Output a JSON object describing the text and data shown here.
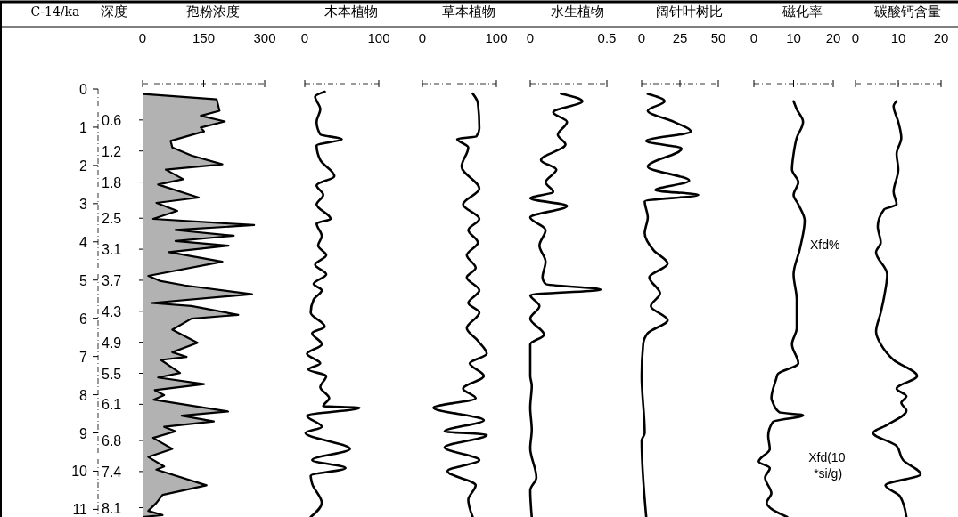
{
  "chart_data": [
    {
      "type": "area",
      "title": "孢粉浓度",
      "ylabel": "C-14/ka",
      "y2label": "深度",
      "xlim": [
        0,
        300
      ],
      "xticks": [
        0,
        150,
        300
      ],
      "ylim": [
        11.2,
        0
      ],
      "yticks": [
        0,
        1,
        2,
        3,
        4,
        5,
        6,
        7,
        8,
        9,
        10,
        11
      ],
      "y2lim": [
        8.28,
        0
      ],
      "y2ticks": [
        0.6,
        1.2,
        1.8,
        2.5,
        3.1,
        3.7,
        4.3,
        4.9,
        5.5,
        6.1,
        6.8,
        7.4,
        8.1
      ],
      "series": [
        {
          "color": "#000000",
          "x": [
            2,
            182,
            189,
            143,
            202,
            143,
            151,
            69,
            73,
            120,
            196,
            57,
            100,
            38,
            138,
            34,
            85,
            26,
            274,
            81,
            224,
            81,
            211,
            65,
            196,
            14,
            42,
            104,
            269,
            22,
            120,
            235,
            120,
            73,
            135,
            73,
            108,
            45,
            92,
            38,
            151,
            30,
            53,
            27,
            210,
            96,
            175,
            53,
            81,
            26,
            73,
            14,
            53,
            34,
            157,
            49,
            34,
            14,
            49,
            0
          ],
          "values": [
            0.13,
            0.27,
            0.57,
            0.7,
            0.85,
            1.01,
            1.11,
            1.36,
            1.53,
            1.74,
            1.97,
            2.11,
            2.36,
            2.5,
            2.84,
            2.98,
            3.19,
            3.4,
            3.56,
            3.69,
            3.84,
            3.98,
            4.1,
            4.27,
            4.52,
            4.89,
            5.02,
            5.14,
            5.37,
            5.6,
            5.68,
            5.91,
            6.01,
            6.3,
            6.64,
            6.89,
            7.01,
            7.09,
            7.43,
            7.55,
            7.72,
            7.88,
            8.01,
            8.13,
            8.44,
            8.55,
            8.7,
            8.84,
            8.96,
            9.13,
            9.42,
            9.63,
            9.88,
            9.96,
            10.37,
            10.62,
            10.83,
            11.04,
            11.15,
            11.2
          ]
        }
      ]
    },
    {
      "type": "line",
      "title": "木本植物",
      "xlim": [
        0,
        100
      ],
      "xticks": [
        0,
        100
      ],
      "ylim": [
        11.2,
        0
      ],
      "tick_labels": "x",
      "series": [
        {
          "color": "#000000",
          "x": [
            27,
            14,
            21,
            16,
            21,
            50,
            16,
            21,
            40,
            16,
            25,
            16,
            35,
            16,
            23,
            18,
            29,
            14,
            29,
            12,
            23,
            12,
            8,
            27,
            10,
            23,
            3,
            21,
            5,
            29,
            21,
            33,
            25,
            74,
            3,
            23,
            1,
            61,
            10,
            55,
            8,
            10,
            23,
            8
          ],
          "values": [
            0.07,
            0.2,
            0.53,
            0.86,
            1.19,
            1.31,
            1.48,
            1.86,
            2.28,
            2.52,
            2.77,
            3.02,
            3.4,
            3.52,
            3.85,
            4.1,
            4.35,
            4.6,
            4.85,
            5.1,
            5.27,
            5.51,
            5.85,
            6.22,
            6.39,
            6.68,
            6.93,
            7.18,
            7.34,
            7.51,
            7.8,
            8.09,
            8.3,
            8.34,
            8.55,
            8.84,
            9.0,
            9.42,
            9.71,
            9.92,
            10.12,
            10.33,
            10.83,
            11.2
          ]
        }
      ]
    },
    {
      "type": "line",
      "title": "草本植物",
      "xlim": [
        0,
        100
      ],
      "xticks": [
        0,
        100
      ],
      "ylim": [
        11.2,
        0
      ],
      "tick_labels": "x",
      "series": [
        {
          "color": "#000000",
          "x": [
            68,
            75,
            77,
            73,
            47,
            62,
            53,
            77,
            55,
            77,
            62,
            75,
            60,
            72,
            60,
            77,
            62,
            77,
            60,
            75,
            87,
            64,
            83,
            55,
            72,
            15,
            83,
            30,
            87,
            30,
            77,
            34,
            72,
            62,
            68
          ],
          "values": [
            0.12,
            0.37,
            1.03,
            1.24,
            1.31,
            1.53,
            2.03,
            2.61,
            3.02,
            3.4,
            3.69,
            4.02,
            4.35,
            4.68,
            4.93,
            5.27,
            5.6,
            5.85,
            6.26,
            6.59,
            6.93,
            7.18,
            7.51,
            7.84,
            8.09,
            8.34,
            8.67,
            8.96,
            9.05,
            9.38,
            9.71,
            10.0,
            10.37,
            10.75,
            11.2
          ]
        }
      ]
    },
    {
      "type": "line",
      "title": "水生植物",
      "xlim": [
        0,
        0.5
      ],
      "xticks": [
        0,
        0.5
      ],
      "ylim": [
        11.2,
        0
      ],
      "tick_labels": "x",
      "series": [
        {
          "color": "#000000",
          "x": [
            0.2,
            0.34,
            0.15,
            0.24,
            0.18,
            0.23,
            0.07,
            0.17,
            0.1,
            0.15,
            0,
            0.24,
            0,
            0.1,
            0.06,
            0.1,
            0.08,
            0.1,
            0.46,
            0,
            0.06,
            0,
            0.09,
            0,
            0,
            0.01,
            0,
            0.01,
            0,
            0.04,
            0,
            0.01
          ],
          "values": [
            0.12,
            0.32,
            0.61,
            0.86,
            1.2,
            1.45,
            1.86,
            2.11,
            2.44,
            2.69,
            2.86,
            3.06,
            3.36,
            3.69,
            4.1,
            4.52,
            4.93,
            5.1,
            5.25,
            5.39,
            5.68,
            6.01,
            6.43,
            6.68,
            7.51,
            7.76,
            8.34,
            8.92,
            9.4,
            10.17,
            10.5,
            11.2
          ]
        }
      ]
    },
    {
      "type": "line",
      "title": "阔针叶树比",
      "xlim": [
        0,
        50
      ],
      "xticks": [
        0,
        25,
        50
      ],
      "ylim": [
        11.2,
        0
      ],
      "tick_labels": "x",
      "series": [
        {
          "color": "#000000",
          "x": [
            4,
            15,
            4,
            21,
            32,
            3,
            26,
            4,
            31,
            9,
            37,
            2,
            4,
            2,
            8,
            17,
            5,
            12,
            6,
            17,
            4,
            1,
            0,
            2,
            0,
            3
          ],
          "values": [
            0.13,
            0.32,
            0.57,
            0.86,
            1.11,
            1.36,
            1.56,
            2.03,
            2.4,
            2.65,
            2.77,
            2.94,
            3.36,
            3.77,
            4.23,
            4.57,
            4.93,
            5.35,
            5.68,
            6.05,
            6.39,
            6.68,
            7.51,
            9.0,
            9.2,
            11.2
          ]
        }
      ]
    },
    {
      "type": "line",
      "title": "磁化率",
      "xlim": [
        0,
        20
      ],
      "xticks": [
        0,
        10,
        20
      ],
      "ylim": [
        11.2,
        0
      ],
      "tick_labels": "x",
      "series": [
        {
          "name": "Xfd%",
          "color": "#000000",
          "x": [
            10,
            10.8,
            12.4,
            10.8,
            10,
            9.6,
            11.2,
            10,
            11.2,
            12.8,
            11.6,
            10,
            10.8,
            10.8,
            9.6,
            11.2,
            6,
            5.6,
            4.4,
            4.8
          ],
          "values": [
            0.32,
            0.53,
            0.86,
            1.28,
            1.7,
            2.11,
            2.44,
            2.77,
            3.02,
            3.44,
            4.18,
            4.85,
            5.51,
            6.26,
            6.68,
            7.18,
            7.46,
            7.59,
            8.09,
            8.21
          ]
        },
        {
          "name": "Xfd(10*si/g)",
          "color": "#000000",
          "x": [
            4.8,
            6.4,
            12.4,
            4.8,
            3.6,
            4,
            1.2,
            4,
            2.8,
            4.4,
            3.2,
            8.4
          ],
          "values": [
            8.21,
            8.46,
            8.54,
            8.71,
            9.08,
            9.42,
            9.75,
            9.92,
            10.17,
            10.58,
            10.83,
            11.2
          ]
        }
      ]
    },
    {
      "type": "line",
      "title": "碳酸钙含量",
      "xlim": [
        0,
        20
      ],
      "xticks": [
        0,
        10,
        20
      ],
      "ylim": [
        11.2,
        0
      ],
      "tick_labels": "x",
      "series": [
        {
          "color": "#000000",
          "x": [
            9.6,
            8.9,
            10,
            10.7,
            9.6,
            10,
            8.9,
            9.6,
            6.7,
            5.2,
            5.9,
            4.8,
            7.4,
            6.7,
            5.9,
            4.8,
            5.9,
            8.9,
            14.4,
            9.6,
            11.9,
            10.7,
            11.9,
            7.4,
            4.1,
            9.6,
            11.1,
            15.2,
            7,
            10.4,
            11.9
          ],
          "values": [
            0.32,
            0.45,
            0.86,
            1.28,
            1.7,
            2.11,
            2.69,
            3.02,
            3.15,
            3.6,
            4.02,
            4.27,
            4.85,
            5.43,
            5.85,
            6.35,
            6.68,
            7.09,
            7.51,
            7.84,
            8.04,
            8.21,
            8.42,
            8.79,
            9.0,
            9.34,
            9.71,
            10.08,
            10.37,
            10.66,
            11.2
          ]
        }
      ]
    }
  ]
}
